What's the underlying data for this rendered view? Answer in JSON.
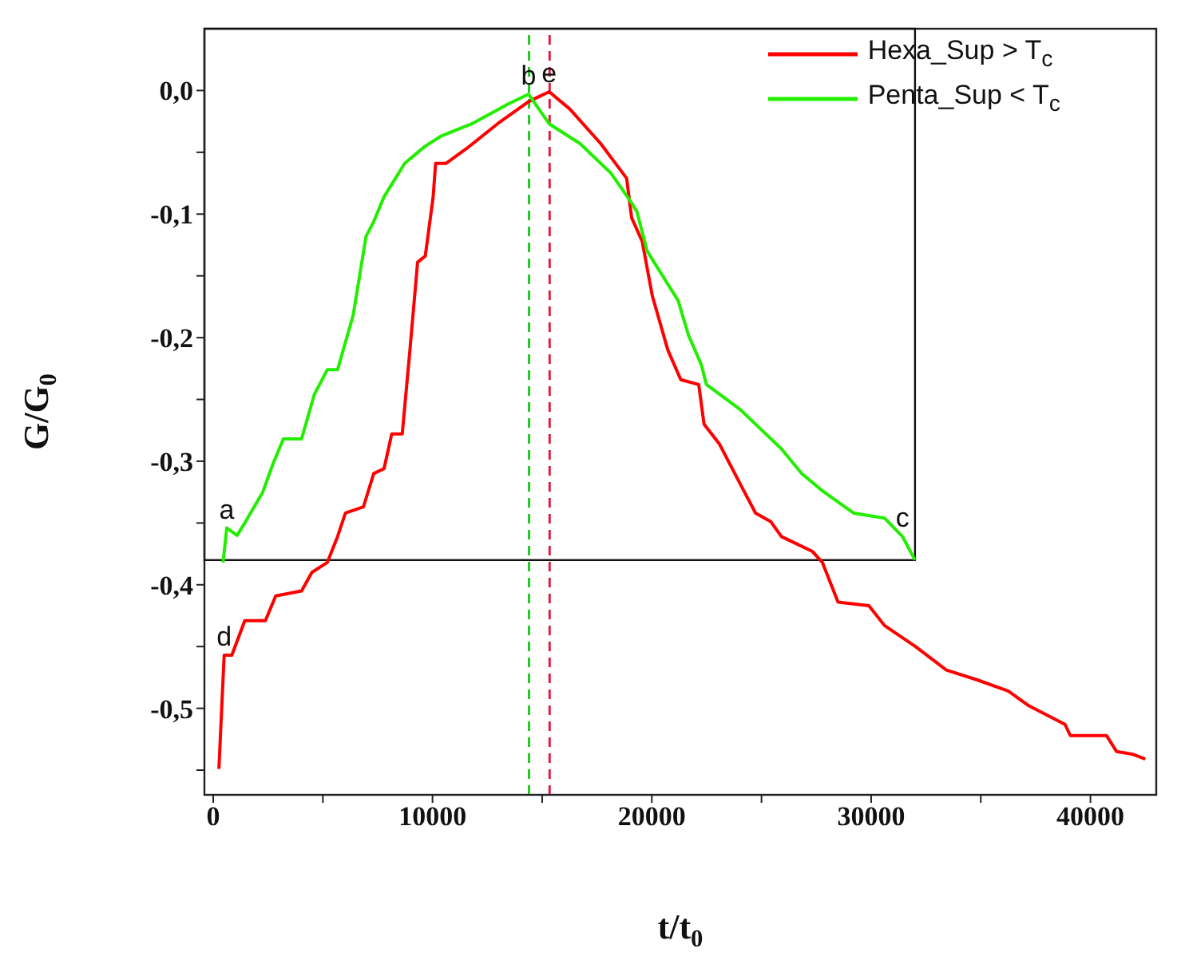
{
  "chart_data": {
    "type": "line",
    "xlabel": "t/t$_{0}$",
    "ylabel": "G/G$_{0}$",
    "xlim": [
      -400,
      43000
    ],
    "ylim": [
      -0.57,
      0.05
    ],
    "xticks": [
      0,
      {
        "value": 5000,
        "label": null
      },
      10000,
      {
        "value": 15000,
        "label": null
      },
      20000,
      {
        "value": 25000,
        "label": null
      },
      30000,
      {
        "value": 35000,
        "label": null
      },
      40000
    ],
    "yticks": [
      {
        "value": -0.55,
        "label": null
      },
      {
        "value": -0.5,
        "label": "-0,5"
      },
      {
        "value": -0.45,
        "label": null
      },
      {
        "value": -0.4,
        "label": "-0,4"
      },
      {
        "value": -0.35,
        "label": null
      },
      {
        "value": -0.3,
        "label": "-0,3"
      },
      {
        "value": -0.25,
        "label": null
      },
      {
        "value": -0.2,
        "label": "-0,2"
      },
      {
        "value": -0.15,
        "label": null
      },
      {
        "value": -0.1,
        "label": "-0,1"
      },
      {
        "value": -0.05,
        "label": null
      },
      {
        "value": 0,
        "label": "0,0"
      }
    ],
    "grid": false,
    "legend": "top right",
    "series": [
      {
        "name": "Hexa_Sup > T$_{c}$",
        "color": "#ff0000",
        "x": [
          260,
          500,
          850,
          1440,
          2380,
          2850,
          4030,
          4500,
          5200,
          5670,
          6030,
          6850,
          7320,
          7790,
          8140,
          8620,
          8970,
          9320,
          9670,
          10030,
          10140,
          10610,
          11550,
          12960,
          14380,
          14850,
          15320,
          16260,
          17670,
          18850,
          19080,
          19560,
          20020,
          20730,
          21320,
          22140,
          22380,
          23080,
          24020,
          24730,
          25430,
          25910,
          27320,
          27780,
          28490,
          29900,
          30610,
          32020,
          33430,
          34840,
          36250,
          37200,
          38840,
          39080,
          40730,
          41190,
          41900,
          42500
        ],
        "values": [
          -0.549,
          -0.457,
          -0.457,
          -0.429,
          -0.429,
          -0.409,
          -0.405,
          -0.39,
          -0.382,
          -0.361,
          -0.342,
          -0.337,
          -0.31,
          -0.306,
          -0.278,
          -0.278,
          -0.21,
          -0.139,
          -0.134,
          -0.086,
          -0.059,
          -0.059,
          -0.047,
          -0.027,
          -0.009,
          -0.005,
          -0.001,
          -0.015,
          -0.043,
          -0.071,
          -0.103,
          -0.122,
          -0.166,
          -0.21,
          -0.234,
          -0.238,
          -0.27,
          -0.286,
          -0.318,
          -0.342,
          -0.349,
          -0.361,
          -0.373,
          -0.382,
          -0.414,
          -0.417,
          -0.433,
          -0.45,
          -0.469,
          -0.477,
          -0.486,
          -0.498,
          -0.513,
          -0.522,
          -0.522,
          -0.535,
          -0.537,
          -0.541
        ]
      },
      {
        "name": "Penta_Sup < T$_{c}$",
        "color": "#22ee00",
        "x": [
          450,
          620,
          1090,
          1440,
          2260,
          2730,
          3200,
          4030,
          4610,
          5200,
          5670,
          6380,
          6970,
          7320,
          7790,
          8730,
          9670,
          10380,
          11790,
          13440,
          14380,
          15320,
          16730,
          18140,
          19080,
          19320,
          19790,
          20490,
          21200,
          21670,
          22260,
          22490,
          24020,
          25200,
          25910,
          26840,
          27780,
          29200,
          30610,
          31430,
          32000
        ],
        "values": [
          -0.382,
          -0.354,
          -0.36,
          -0.35,
          -0.325,
          -0.302,
          -0.282,
          -0.282,
          -0.246,
          -0.226,
          -0.226,
          -0.182,
          -0.118,
          -0.106,
          -0.086,
          -0.059,
          -0.045,
          -0.037,
          -0.027,
          -0.011,
          -0.003,
          -0.027,
          -0.043,
          -0.067,
          -0.091,
          -0.098,
          -0.13,
          -0.15,
          -0.17,
          -0.198,
          -0.222,
          -0.238,
          -0.258,
          -0.278,
          -0.29,
          -0.31,
          -0.324,
          -0.342,
          -0.346,
          -0.361,
          -0.38
        ]
      }
    ],
    "ref_lines": [
      {
        "axis": "x",
        "value": 14400,
        "color": "#22cc22",
        "line_style": "dashed"
      },
      {
        "axis": "x",
        "value": 15340,
        "color": "#dd2244",
        "line_style": "dashed"
      }
    ],
    "annotations": [
      {
        "text": "a",
        "x": 620,
        "y": -0.354
      },
      {
        "text": "b",
        "x": 14380,
        "y": -0.003
      },
      {
        "text": "e",
        "x": 15320,
        "y": -0.001
      },
      {
        "text": "d",
        "x": 500,
        "y": -0.457
      },
      {
        "text": "c",
        "x": 31430,
        "y": -0.361
      }
    ]
  }
}
